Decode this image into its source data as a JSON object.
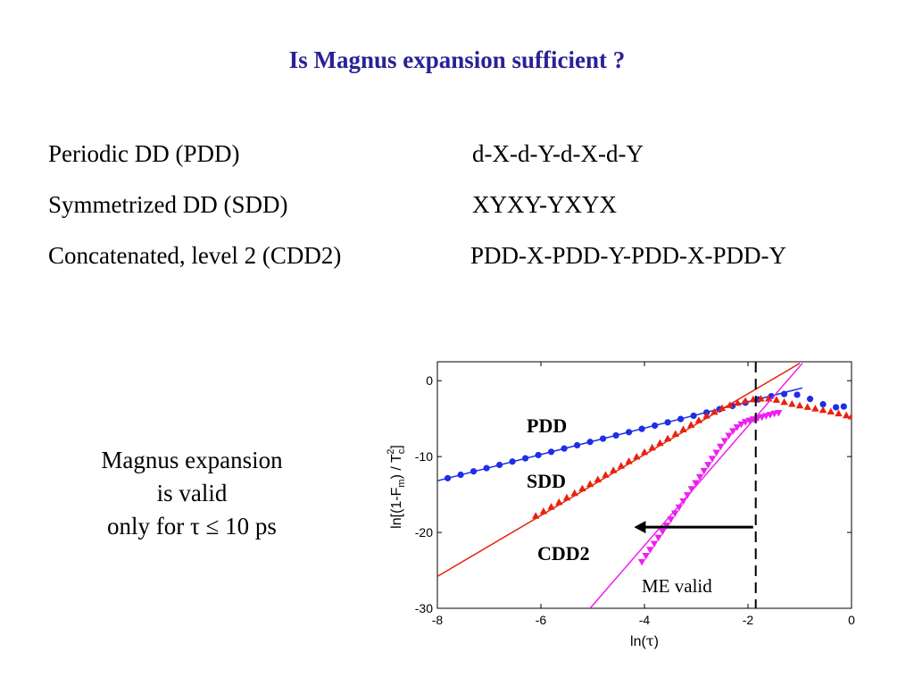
{
  "slide": {
    "title": "Is Magnus expansion sufficient ?",
    "schemes": [
      {
        "name": "Periodic DD (PDD)",
        "sequence": "d-X-d-Y-d-X-d-Y"
      },
      {
        "name": "Symmetrized DD (SDD)",
        "sequence": "XYXY-YXYX"
      },
      {
        "name": "Concatenated, level 2 (CDD2)",
        "sequence": "PDD-X-PDD-Y-PDD-X-PDD-Y"
      }
    ],
    "note_lines": [
      "Magnus expansion",
      "is valid",
      "only for τ ≤ 10 ps"
    ]
  },
  "colors": {
    "title": "#2a2196",
    "pdd": "#1c2ee6",
    "sdd": "#e8220c",
    "cdd2": "#f01ef0"
  },
  "chart_data": {
    "type": "scatter",
    "xlabel_base": "ln(",
    "xlabel_sym": "τ",
    "xlabel_end": ")",
    "ylabel_parts": [
      "ln[(1-F",
      "m",
      ") / T",
      "c",
      "2",
      "]"
    ],
    "xlim": [
      -8,
      0
    ],
    "ylim": [
      -30,
      2.5
    ],
    "xticks": [
      -8,
      -6,
      -4,
      -2,
      0
    ],
    "xtick_labels": [
      "-8",
      "-6",
      "-4",
      "-2",
      "0"
    ],
    "yticks": [
      0,
      -10,
      -20,
      -30
    ],
    "ytick_labels": [
      "0",
      "-10",
      "-20",
      "-30"
    ],
    "vline_x": -1.85,
    "annotation_text": "ME valid",
    "arrow": {
      "x_from": -1.9,
      "x_to": -4.2,
      "y": -19.3
    },
    "series": [
      {
        "name": "PDD",
        "marker": "circle",
        "fit_line": {
          "x": [
            -8,
            -0.95
          ],
          "y": [
            -13.2,
            -0.95
          ]
        },
        "points": [
          [
            -7.8,
            -12.85
          ],
          [
            -7.55,
            -12.4
          ],
          [
            -7.3,
            -11.95
          ],
          [
            -7.05,
            -11.52
          ],
          [
            -6.8,
            -11.1
          ],
          [
            -6.55,
            -10.66
          ],
          [
            -6.3,
            -10.23
          ],
          [
            -6.05,
            -9.8
          ],
          [
            -5.8,
            -9.37
          ],
          [
            -5.55,
            -8.94
          ],
          [
            -5.3,
            -8.5
          ],
          [
            -5.05,
            -8.07
          ],
          [
            -4.8,
            -7.64
          ],
          [
            -4.55,
            -7.21
          ],
          [
            -4.3,
            -6.78
          ],
          [
            -4.05,
            -6.35
          ],
          [
            -3.8,
            -5.92
          ],
          [
            -3.55,
            -5.49
          ],
          [
            -3.3,
            -5.05
          ],
          [
            -3.05,
            -4.62
          ],
          [
            -2.8,
            -4.19
          ],
          [
            -2.55,
            -3.76
          ],
          [
            -2.3,
            -3.33
          ],
          [
            -2.05,
            -2.9
          ],
          [
            -1.8,
            -2.47
          ],
          [
            -1.55,
            -2.05
          ],
          [
            -1.3,
            -1.75
          ],
          [
            -1.05,
            -1.85
          ],
          [
            -0.8,
            -2.4
          ],
          [
            -0.55,
            -3.1
          ],
          [
            -0.3,
            -3.5
          ],
          [
            -0.15,
            -3.4
          ]
        ]
      },
      {
        "name": "SDD",
        "marker": "triangle",
        "fit_line": {
          "x": [
            -8,
            -1.0
          ],
          "y": [
            -25.8,
            2.3
          ]
        },
        "points": [
          [
            -6.1,
            -17.8
          ],
          [
            -5.95,
            -17.2
          ],
          [
            -5.8,
            -16.6
          ],
          [
            -5.65,
            -16.0
          ],
          [
            -5.5,
            -15.4
          ],
          [
            -5.35,
            -14.8
          ],
          [
            -5.2,
            -14.2
          ],
          [
            -5.05,
            -13.6
          ],
          [
            -4.9,
            -13.0
          ],
          [
            -4.75,
            -12.4
          ],
          [
            -4.6,
            -11.8
          ],
          [
            -4.45,
            -11.2
          ],
          [
            -4.3,
            -10.6
          ],
          [
            -4.15,
            -10.0
          ],
          [
            -4.0,
            -9.4
          ],
          [
            -3.85,
            -8.8
          ],
          [
            -3.7,
            -8.2
          ],
          [
            -3.55,
            -7.6
          ],
          [
            -3.4,
            -7.0
          ],
          [
            -3.25,
            -6.4
          ],
          [
            -3.1,
            -5.8
          ],
          [
            -2.95,
            -5.2
          ],
          [
            -2.8,
            -4.6
          ],
          [
            -2.65,
            -4.1
          ],
          [
            -2.5,
            -3.6
          ],
          [
            -2.35,
            -3.2
          ],
          [
            -2.2,
            -2.9
          ],
          [
            -2.05,
            -2.65
          ],
          [
            -1.9,
            -2.45
          ],
          [
            -1.75,
            -2.35
          ],
          [
            -1.6,
            -2.35
          ],
          [
            -1.45,
            -2.5
          ],
          [
            -1.3,
            -2.8
          ],
          [
            -1.15,
            -3.05
          ],
          [
            -1.0,
            -3.25
          ],
          [
            -0.85,
            -3.45
          ],
          [
            -0.7,
            -3.65
          ],
          [
            -0.55,
            -3.85
          ],
          [
            -0.4,
            -4.05
          ],
          [
            -0.25,
            -4.3
          ],
          [
            -0.1,
            -4.55
          ],
          [
            0.0,
            -4.7
          ]
        ]
      },
      {
        "name": "CDD2",
        "marker": "triangle-down",
        "fit_line": {
          "x": [
            -5.05,
            -0.95
          ],
          "y": [
            -30,
            2.3
          ]
        },
        "points": [
          [
            -4.05,
            -23.9
          ],
          [
            -3.97,
            -23.1
          ],
          [
            -3.89,
            -22.3
          ],
          [
            -3.81,
            -21.5
          ],
          [
            -3.73,
            -20.7
          ],
          [
            -3.65,
            -19.9
          ],
          [
            -3.57,
            -19.1
          ],
          [
            -3.49,
            -18.3
          ],
          [
            -3.41,
            -17.5
          ],
          [
            -3.33,
            -16.7
          ],
          [
            -3.25,
            -15.9
          ],
          [
            -3.17,
            -15.1
          ],
          [
            -3.09,
            -14.3
          ],
          [
            -3.01,
            -13.5
          ],
          [
            -2.93,
            -12.7
          ],
          [
            -2.85,
            -11.9
          ],
          [
            -2.77,
            -11.1
          ],
          [
            -2.69,
            -10.3
          ],
          [
            -2.61,
            -9.5
          ],
          [
            -2.53,
            -8.7
          ],
          [
            -2.45,
            -7.95
          ],
          [
            -2.37,
            -7.25
          ],
          [
            -2.29,
            -6.65
          ],
          [
            -2.21,
            -6.15
          ],
          [
            -2.13,
            -5.75
          ],
          [
            -2.05,
            -5.45
          ],
          [
            -1.97,
            -5.25
          ],
          [
            -1.89,
            -5.1
          ],
          [
            -1.81,
            -4.95
          ],
          [
            -1.73,
            -4.8
          ],
          [
            -1.65,
            -4.65
          ],
          [
            -1.57,
            -4.5
          ],
          [
            -1.49,
            -4.35
          ],
          [
            -1.41,
            -4.25
          ]
        ]
      }
    ]
  }
}
